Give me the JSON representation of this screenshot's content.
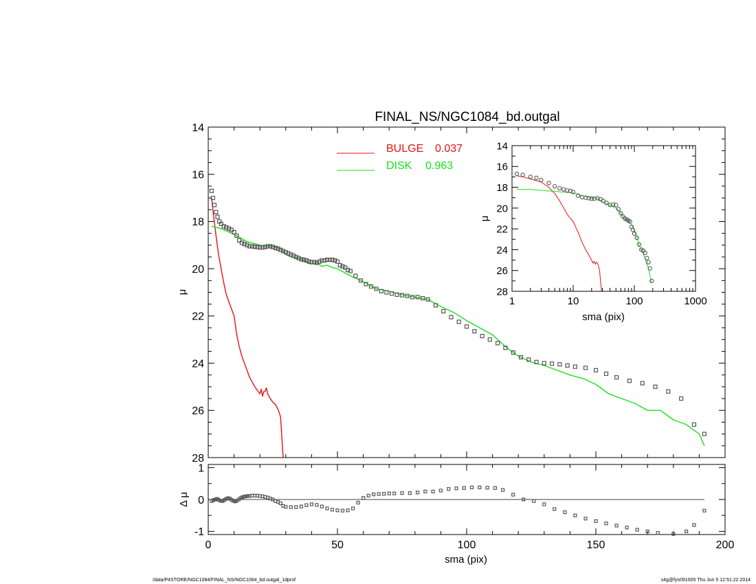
{
  "footer": {
    "left": "/data/P4STORE/NGC1084/FINAL_NS/NGC1084_bd.outgal_1dprof",
    "right": "s4g@fys091005  Thu Jun  5 12:51:22 2014"
  },
  "colors": {
    "bulge": "#e81010",
    "disk": "#17e017",
    "data": "#555555",
    "axis": "#000000"
  },
  "chart_data": [
    {
      "type": "line",
      "panel": "main",
      "title": "FINAL_NS/NGC1084_bd.outgal",
      "xlabel": "",
      "ylabel": "μ",
      "xlim": [
        0,
        200
      ],
      "ylim": [
        28,
        14
      ],
      "y_inverted": true,
      "xticks": [
        0,
        50,
        100,
        150,
        200
      ],
      "yticks": [
        14,
        16,
        18,
        20,
        22,
        24,
        26,
        28
      ],
      "legend_position": "top",
      "legend": [
        {
          "label": "BULGE",
          "value": "0.037",
          "color": "#e81010"
        },
        {
          "label": "DISK",
          "value": "0.963",
          "color": "#17e017"
        }
      ],
      "series": [
        {
          "name": "BULGE",
          "style": "line",
          "color": "#e81010",
          "x": [
            1.3,
            2,
            3,
            4,
            5,
            6,
            7,
            8,
            9,
            10,
            11,
            12,
            13,
            14,
            15,
            16,
            17,
            18,
            19,
            20,
            20.5,
            21,
            21.5,
            22,
            22.5,
            23,
            24,
            25,
            26,
            27,
            27.5,
            28,
            28.5,
            29
          ],
          "y": [
            17.0,
            17.7,
            18.6,
            19.4,
            20.0,
            20.6,
            21.1,
            21.4,
            21.7,
            22.0,
            22.8,
            23.3,
            23.7,
            24.0,
            24.3,
            24.6,
            24.8,
            25.0,
            25.15,
            25.3,
            25.1,
            25.4,
            25.2,
            25.2,
            25.05,
            25.3,
            25.5,
            25.65,
            25.75,
            25.95,
            26.1,
            26.3,
            27.2,
            28.0
          ]
        },
        {
          "name": "DISK",
          "style": "line",
          "color": "#17e017",
          "x": [
            1.3,
            5,
            10,
            15,
            20,
            25,
            28,
            30,
            32,
            35,
            38,
            40,
            42,
            44,
            46,
            48,
            50,
            55,
            60,
            65,
            70,
            75,
            80,
            85,
            90,
            95,
            100,
            105,
            110,
            115,
            120,
            125,
            130,
            135,
            140,
            145,
            150,
            155,
            160,
            165,
            170,
            175,
            180,
            185,
            190,
            192
          ],
          "y": [
            18.2,
            18.3,
            18.55,
            18.85,
            19.0,
            19.05,
            19.15,
            19.4,
            19.5,
            19.55,
            19.7,
            19.8,
            19.75,
            19.9,
            19.85,
            19.95,
            20.0,
            20.3,
            20.55,
            20.85,
            20.95,
            21.1,
            21.2,
            21.3,
            21.6,
            21.85,
            22.2,
            22.5,
            22.8,
            23.3,
            23.7,
            23.95,
            24.1,
            24.3,
            24.5,
            24.65,
            24.9,
            25.3,
            25.5,
            25.7,
            26.0,
            26.0,
            26.4,
            26.6,
            27.0,
            27.5
          ]
        },
        {
          "name": "",
          "style": "open-squares",
          "color": "#555555",
          "x": [
            1.3,
            1.8,
            2.4,
            3.0,
            3.6,
            4.3,
            5.0,
            6,
            7,
            8,
            9,
            10,
            11,
            12,
            13,
            14,
            15,
            16,
            17,
            18,
            19,
            20,
            21,
            22,
            23,
            24,
            25,
            26,
            27,
            28,
            29,
            30,
            31,
            32,
            33,
            34,
            35,
            36,
            37,
            38,
            39,
            40,
            41,
            42,
            43,
            44,
            45,
            46,
            47,
            48,
            49,
            50,
            51,
            52,
            53,
            54,
            55,
            57,
            59,
            61,
            63,
            65,
            67,
            69,
            71,
            73,
            75,
            77,
            79,
            81,
            83,
            85,
            88,
            91,
            94,
            97,
            100,
            103,
            106,
            109,
            112,
            115,
            118,
            121,
            124,
            127,
            130,
            133,
            136,
            139,
            142,
            146,
            150,
            154,
            158,
            163,
            168,
            173,
            178,
            183,
            188,
            192
          ],
          "y": [
            16.7,
            17.0,
            17.3,
            17.6,
            17.8,
            18.0,
            18.1,
            18.2,
            18.25,
            18.3,
            18.35,
            18.45,
            18.6,
            18.8,
            18.9,
            18.95,
            19.0,
            19.05,
            19.05,
            19.07,
            19.08,
            19.1,
            19.1,
            19.08,
            19.05,
            19.05,
            19.08,
            19.12,
            19.15,
            19.2,
            19.25,
            19.3,
            19.35,
            19.4,
            19.45,
            19.5,
            19.55,
            19.6,
            19.62,
            19.65,
            19.7,
            19.72,
            19.72,
            19.75,
            19.7,
            19.65,
            19.65,
            19.62,
            19.62,
            19.62,
            19.65,
            19.7,
            19.85,
            19.9,
            19.95,
            20.05,
            20.1,
            20.3,
            20.5,
            20.65,
            20.75,
            20.85,
            20.95,
            21.0,
            21.05,
            21.1,
            21.12,
            21.15,
            21.2,
            21.2,
            21.25,
            21.3,
            21.55,
            21.8,
            22.05,
            22.25,
            22.45,
            22.65,
            22.85,
            23.0,
            23.15,
            23.35,
            23.55,
            23.75,
            23.85,
            23.95,
            24.0,
            24.02,
            24.05,
            24.1,
            24.15,
            24.2,
            24.3,
            24.45,
            24.6,
            24.75,
            24.85,
            25.0,
            25.2,
            25.5,
            26.6,
            27.0
          ]
        }
      ]
    },
    {
      "type": "scatter",
      "panel": "residual",
      "title": "",
      "xlabel": "sma (pix)",
      "ylabel": "Δ μ",
      "xlim": [
        0,
        200
      ],
      "ylim": [
        -1.1,
        1.1
      ],
      "xticks": [
        0,
        50,
        100,
        150,
        200
      ],
      "yticks": [
        -1,
        0,
        1
      ],
      "grid": false,
      "series": [
        {
          "name": "",
          "style": "open-squares",
          "color": "#555555",
          "x": [
            1.3,
            2.0,
            2.7,
            3.4,
            4.1,
            4.8,
            5.5,
            6.2,
            6.9,
            7.6,
            8.3,
            9.0,
            9.7,
            10.4,
            11.1,
            11.8,
            12.5,
            13.2,
            13.9,
            14.6,
            15.3,
            16,
            17,
            18,
            19,
            20,
            21,
            22,
            23,
            24,
            25,
            26,
            27,
            28,
            29,
            30,
            32,
            34,
            36,
            38,
            40,
            42,
            44,
            46,
            48,
            50,
            52,
            54,
            56,
            58,
            60,
            62,
            64,
            66,
            68,
            70,
            72,
            75,
            78,
            81,
            84,
            87,
            90,
            93,
            96,
            99,
            102,
            105,
            108,
            111,
            114,
            118,
            122,
            126,
            130,
            134,
            138,
            142,
            146,
            150,
            154,
            158,
            162,
            166,
            170,
            174,
            180,
            185,
            188,
            192
          ],
          "y": [
            -0.05,
            -0.02,
            0.0,
            0.02,
            -0.01,
            -0.04,
            -0.05,
            -0.02,
            0.02,
            0.04,
            0.03,
            -0.01,
            -0.04,
            -0.06,
            -0.04,
            0.0,
            0.04,
            0.07,
            0.09,
            0.1,
            0.11,
            0.11,
            0.12,
            0.12,
            0.12,
            0.11,
            0.1,
            0.08,
            0.06,
            0.03,
            0.0,
            -0.05,
            -0.08,
            -0.12,
            -0.2,
            -0.23,
            -0.24,
            -0.24,
            -0.22,
            -0.18,
            -0.15,
            -0.17,
            -0.22,
            -0.28,
            -0.32,
            -0.34,
            -0.35,
            -0.34,
            -0.28,
            -0.1,
            0.05,
            0.12,
            0.16,
            0.17,
            0.18,
            0.19,
            0.19,
            0.2,
            0.2,
            0.22,
            0.25,
            0.25,
            0.28,
            0.33,
            0.35,
            0.36,
            0.38,
            0.38,
            0.37,
            0.36,
            0.3,
            0.15,
            0.0,
            -0.05,
            -0.15,
            -0.3,
            -0.4,
            -0.5,
            -0.6,
            -0.68,
            -0.75,
            -0.82,
            -0.88,
            -0.95,
            -1.0,
            -1.05,
            -1.08,
            -1.0,
            -0.8,
            -0.35
          ]
        }
      ]
    },
    {
      "type": "line",
      "panel": "inset",
      "title": "",
      "xlabel": "sma (pix)",
      "ylabel": "μ",
      "x_scale": "log",
      "xlim": [
        1,
        1000
      ],
      "ylim": [
        28,
        14
      ],
      "y_inverted": true,
      "xticks": [
        1,
        10,
        100,
        1000
      ],
      "yticks": [
        14,
        16,
        18,
        20,
        22,
        24,
        26,
        28
      ],
      "series": [
        {
          "name": "BULGE",
          "style": "line",
          "color": "#e81010",
          "x": [
            1.2,
            1.5,
            2,
            3,
            4,
            5,
            6,
            7,
            8,
            9,
            10,
            12,
            14,
            16,
            18,
            20,
            21,
            22,
            23,
            24,
            25,
            26,
            27,
            28,
            29
          ],
          "y": [
            16.9,
            17.0,
            17.2,
            17.5,
            18.0,
            18.6,
            19.3,
            20.0,
            20.6,
            21.0,
            21.3,
            22.3,
            23.3,
            24.0,
            24.5,
            25.0,
            25.3,
            25.1,
            25.4,
            25.2,
            25.3,
            25.6,
            26.0,
            27.0,
            28.0
          ]
        },
        {
          "name": "DISK",
          "style": "line",
          "color": "#17e017",
          "x": [
            1.2,
            2,
            3,
            5,
            8,
            10,
            15,
            20,
            25,
            30,
            40,
            50,
            60,
            70,
            80,
            90,
            100,
            110,
            120,
            130,
            140,
            150,
            160,
            170,
            180,
            190
          ],
          "y": [
            18.2,
            18.2,
            18.3,
            18.4,
            18.5,
            18.55,
            18.85,
            19.0,
            19.05,
            19.4,
            19.75,
            20.0,
            20.5,
            21.0,
            21.2,
            21.6,
            22.2,
            22.8,
            23.6,
            24.0,
            24.4,
            24.9,
            25.4,
            25.8,
            26.4,
            27.2
          ]
        },
        {
          "name": "",
          "style": "open-circles",
          "color": "#555555",
          "x": [
            1.2,
            1.5,
            2,
            2.5,
            3,
            4,
            5,
            6,
            7,
            8,
            9,
            10,
            12,
            14,
            16,
            18,
            20,
            22,
            25,
            28,
            31,
            35,
            40,
            45,
            50,
            55,
            60,
            65,
            70,
            75,
            80,
            85,
            90,
            95,
            100,
            110,
            120,
            130,
            140,
            150,
            160,
            170,
            180,
            192
          ],
          "y": [
            16.7,
            16.8,
            17.0,
            17.1,
            17.3,
            17.6,
            17.9,
            18.1,
            18.2,
            18.3,
            18.35,
            18.45,
            18.8,
            18.95,
            19.0,
            19.05,
            19.1,
            19.1,
            19.05,
            19.15,
            19.3,
            19.5,
            19.7,
            19.65,
            19.7,
            20.1,
            20.5,
            20.8,
            21.0,
            21.1,
            21.2,
            21.3,
            21.8,
            22.1,
            22.45,
            22.85,
            23.5,
            24.0,
            24.1,
            24.3,
            24.8,
            25.2,
            25.8,
            27.0
          ]
        }
      ]
    }
  ]
}
